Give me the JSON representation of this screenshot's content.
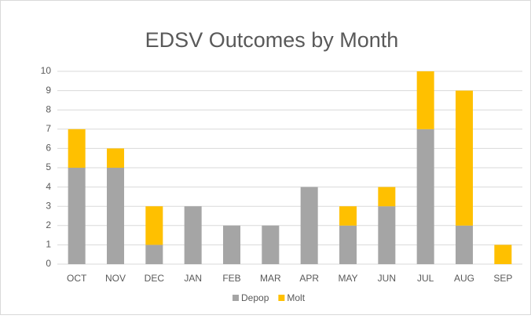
{
  "chart_data": {
    "type": "stacked_bar",
    "title": "EDSV Outcomes by Month",
    "categories": [
      "OCT",
      "NOV",
      "DEC",
      "JAN",
      "FEB",
      "MAR",
      "APR",
      "MAY",
      "JUN",
      "JUL",
      "AUG",
      "SEP"
    ],
    "series": [
      {
        "name": "Depop",
        "color": "#a5a5a5",
        "values": [
          5,
          5,
          1,
          3,
          2,
          2,
          4,
          2,
          3,
          7,
          2,
          0
        ]
      },
      {
        "name": "Molt",
        "color": "#ffc000",
        "values": [
          2,
          1,
          2,
          0,
          0,
          0,
          0,
          1,
          1,
          3,
          7,
          1
        ]
      }
    ],
    "ylim": [
      0,
      10
    ],
    "yticks": [
      0,
      1,
      2,
      3,
      4,
      5,
      6,
      7,
      8,
      9,
      10
    ],
    "grid": true,
    "legend": "bottom"
  }
}
